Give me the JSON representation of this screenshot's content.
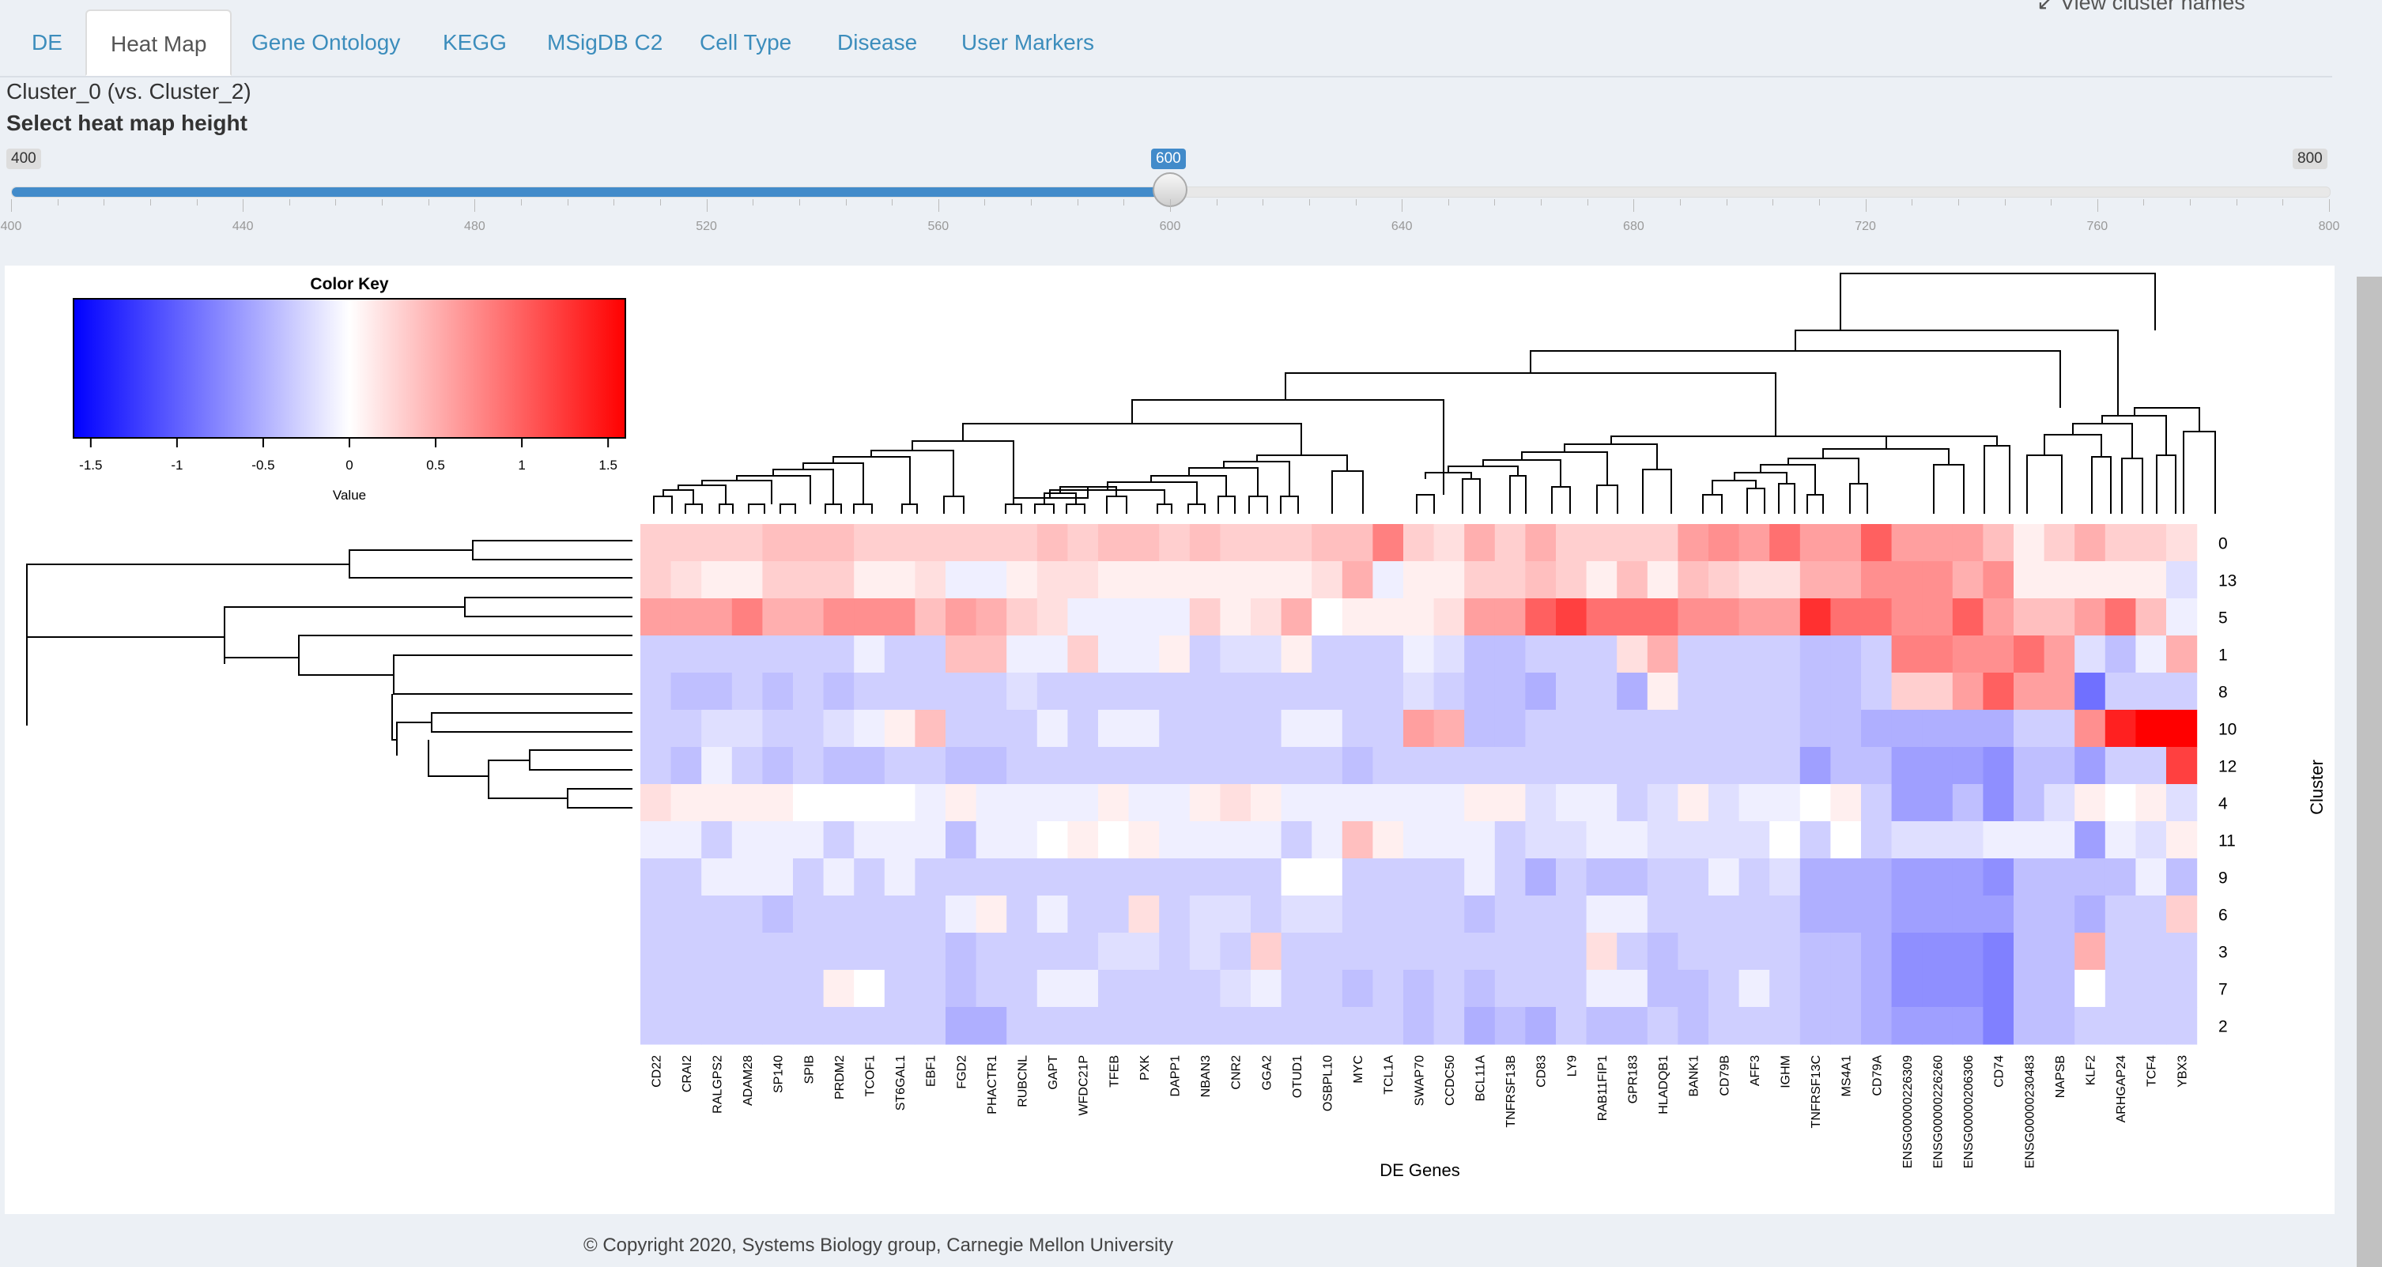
{
  "tabs": [
    {
      "label": "DE",
      "active": false
    },
    {
      "label": "Heat Map",
      "active": true
    },
    {
      "label": "Gene Ontology",
      "active": false
    },
    {
      "label": "KEGG",
      "active": false
    },
    {
      "label": "MSigDB C2",
      "active": false
    },
    {
      "label": "Cell Type",
      "active": false
    },
    {
      "label": "Disease",
      "active": false
    },
    {
      "label": "User Markers",
      "active": false
    }
  ],
  "view_cluster_names": "↙ View cluster names",
  "subtitle": "Cluster_0 (vs. Cluster_2)",
  "heat_map_height_label": "Select heat map height",
  "slider": {
    "min": 400,
    "max": 800,
    "value": 600,
    "min_label": "400",
    "max_label": "800",
    "value_label": "600",
    "ticks": [
      "400",
      "440",
      "480",
      "520",
      "560",
      "600",
      "640",
      "680",
      "720",
      "760",
      "800"
    ]
  },
  "colors": {
    "accent": "#428bca",
    "link": "#3c8dbc",
    "low": "#0000ff",
    "mid": "#ffffff",
    "high": "#ff0000",
    "background": "#ecf0f5"
  },
  "chart_data": {
    "type": "heatmap",
    "color_key_title": "Color Key",
    "color_key_xlabel": "Value",
    "color_key_ticks": [
      "-1.5",
      "-1",
      "-0.5",
      "0",
      "0.5",
      "1",
      "1.5"
    ],
    "color_range": [
      -1.6,
      1.6
    ],
    "xlabel": "DE Genes",
    "ylabel": "Cluster",
    "rows": [
      "0",
      "13",
      "5",
      "1",
      "8",
      "10",
      "12",
      "4",
      "11",
      "9",
      "6",
      "3",
      "7",
      "2"
    ],
    "columns": [
      "CD22",
      "CRAI2",
      "RALGPS2",
      "ADAM28",
      "SP140",
      "SPIB",
      "PRDM2",
      "TCOF1",
      "ST6GAL1",
      "EBF1",
      "FGD2",
      "PHACTR1",
      "RUBCNL",
      "GAPT",
      "WFDC21P",
      "TFEB",
      "PXK",
      "DAPP1",
      "NBAN3",
      "CNR2",
      "GGA2",
      "OTUD1",
      "OSBPL10",
      "MYC",
      "TCL1A",
      "SWAP70",
      "CCDC50",
      "BCL11A",
      "TNFRSF13B",
      "CD83",
      "LY9",
      "RAB11FIP1",
      "GPR183",
      "HLADQB1",
      "BANK1",
      "CD79B",
      "AFF3",
      "IGHM",
      "TNFRSF13C",
      "MS4A1",
      "CD79A",
      "ENSG00000226309",
      "ENSG00000226260",
      "ENSG00000206306",
      "CD74",
      "ENSG00000230483",
      "NAPSB",
      "KLF2",
      "ARHGAP24",
      "TCF4",
      "YBX3"
    ],
    "values": [
      [
        0.3,
        0.3,
        0.3,
        0.3,
        0.4,
        0.4,
        0.4,
        0.3,
        0.3,
        0.3,
        0.3,
        0.3,
        0.3,
        0.4,
        0.3,
        0.4,
        0.4,
        0.3,
        0.4,
        0.3,
        0.3,
        0.3,
        0.4,
        0.4,
        0.8,
        0.3,
        0.2,
        0.5,
        0.3,
        0.5,
        0.3,
        0.3,
        0.3,
        0.3,
        0.6,
        0.7,
        0.6,
        0.9,
        0.6,
        0.6,
        1.0,
        0.6,
        0.6,
        0.6,
        0.4,
        0.1,
        0.3,
        0.5,
        0.3,
        0.3,
        0.2
      ],
      [
        0.3,
        0.2,
        0.1,
        0.1,
        0.3,
        0.3,
        0.3,
        0.1,
        0.1,
        0.2,
        -0.1,
        -0.1,
        0.1,
        0.2,
        0.2,
        0.1,
        0.1,
        0.1,
        0.1,
        0.1,
        0.1,
        0.1,
        0.2,
        0.5,
        -0.1,
        0.1,
        0.1,
        0.3,
        0.3,
        0.4,
        0.3,
        0.1,
        0.4,
        0.1,
        0.4,
        0.3,
        0.2,
        0.2,
        0.5,
        0.5,
        0.7,
        0.7,
        0.7,
        0.5,
        0.7,
        0.1,
        0.1,
        0.1,
        0.1,
        0.1,
        -0.2
      ],
      [
        0.6,
        0.6,
        0.6,
        0.8,
        0.5,
        0.5,
        0.7,
        0.7,
        0.7,
        0.4,
        0.6,
        0.5,
        0.3,
        0.2,
        -0.1,
        -0.1,
        -0.1,
        -0.1,
        0.3,
        0.1,
        0.2,
        0.5,
        0.0,
        0.1,
        0.1,
        0.1,
        0.2,
        0.6,
        0.6,
        1.0,
        1.2,
        0.9,
        0.9,
        0.9,
        0.7,
        0.7,
        0.6,
        0.6,
        1.3,
        0.9,
        0.9,
        0.7,
        0.7,
        1.0,
        0.6,
        0.4,
        0.4,
        0.6,
        0.9,
        0.4,
        -0.1
      ],
      [
        -0.3,
        -0.3,
        -0.3,
        -0.3,
        -0.3,
        -0.3,
        -0.3,
        -0.1,
        -0.3,
        -0.3,
        0.4,
        0.4,
        -0.1,
        -0.1,
        0.3,
        -0.1,
        -0.1,
        0.1,
        -0.3,
        -0.2,
        -0.2,
        0.1,
        -0.3,
        -0.3,
        -0.3,
        -0.1,
        -0.2,
        -0.4,
        -0.4,
        -0.3,
        -0.3,
        -0.3,
        0.2,
        0.5,
        -0.3,
        -0.3,
        -0.3,
        -0.3,
        -0.4,
        -0.4,
        -0.3,
        0.8,
        0.8,
        0.7,
        0.7,
        0.9,
        0.6,
        -0.2,
        -0.4,
        -0.1,
        0.5
      ],
      [
        -0.3,
        -0.4,
        -0.4,
        -0.3,
        -0.4,
        -0.3,
        -0.4,
        -0.3,
        -0.3,
        -0.3,
        -0.3,
        -0.3,
        -0.2,
        -0.3,
        -0.3,
        -0.3,
        -0.3,
        -0.3,
        -0.3,
        -0.3,
        -0.3,
        -0.3,
        -0.3,
        -0.3,
        -0.3,
        -0.2,
        -0.3,
        -0.4,
        -0.4,
        -0.5,
        -0.3,
        -0.3,
        -0.5,
        0.1,
        -0.3,
        -0.3,
        -0.3,
        -0.3,
        -0.4,
        -0.4,
        -0.3,
        0.3,
        0.3,
        0.6,
        1.0,
        0.6,
        0.6,
        -0.9,
        -0.3,
        -0.3,
        -0.3
      ],
      [
        -0.3,
        -0.3,
        -0.2,
        -0.2,
        -0.3,
        -0.3,
        -0.2,
        -0.1,
        0.1,
        0.4,
        -0.3,
        -0.3,
        -0.3,
        -0.1,
        -0.3,
        -0.1,
        -0.1,
        -0.3,
        -0.3,
        -0.3,
        -0.3,
        -0.1,
        -0.1,
        -0.3,
        -0.3,
        0.6,
        0.5,
        -0.4,
        -0.4,
        -0.3,
        -0.3,
        -0.3,
        -0.3,
        -0.3,
        -0.3,
        -0.3,
        -0.3,
        -0.3,
        -0.4,
        -0.4,
        -0.5,
        -0.5,
        -0.5,
        -0.5,
        -0.5,
        -0.3,
        -0.3,
        0.7,
        1.4,
        1.6,
        1.6
      ],
      [
        -0.3,
        -0.4,
        -0.1,
        -0.3,
        -0.4,
        -0.3,
        -0.4,
        -0.4,
        -0.3,
        -0.3,
        -0.4,
        -0.4,
        -0.3,
        -0.3,
        -0.3,
        -0.3,
        -0.3,
        -0.3,
        -0.3,
        -0.3,
        -0.3,
        -0.3,
        -0.3,
        -0.4,
        -0.3,
        -0.3,
        -0.3,
        -0.3,
        -0.3,
        -0.3,
        -0.3,
        -0.3,
        -0.3,
        -0.3,
        -0.3,
        -0.3,
        -0.3,
        -0.3,
        -0.6,
        -0.4,
        -0.4,
        -0.6,
        -0.6,
        -0.6,
        -0.7,
        -0.4,
        -0.4,
        -0.6,
        -0.3,
        -0.3,
        1.2
      ],
      [
        0.2,
        0.1,
        0.1,
        0.1,
        0.1,
        0.0,
        0.0,
        0.0,
        0.0,
        -0.1,
        0.1,
        -0.1,
        -0.1,
        -0.1,
        -0.1,
        0.1,
        -0.1,
        -0.1,
        0.1,
        0.2,
        0.1,
        -0.1,
        -0.1,
        -0.1,
        -0.1,
        -0.1,
        -0.1,
        0.1,
        0.1,
        -0.2,
        -0.1,
        -0.1,
        -0.3,
        -0.2,
        0.1,
        -0.2,
        -0.1,
        -0.1,
        0.0,
        0.1,
        -0.3,
        -0.6,
        -0.6,
        -0.4,
        -0.7,
        -0.4,
        -0.2,
        0.1,
        0.0,
        0.1,
        -0.2
      ],
      [
        -0.1,
        -0.1,
        -0.3,
        -0.1,
        -0.1,
        -0.1,
        -0.3,
        -0.1,
        -0.1,
        -0.1,
        -0.4,
        -0.1,
        -0.1,
        0.0,
        0.1,
        0.0,
        0.1,
        -0.1,
        -0.1,
        -0.1,
        -0.1,
        -0.3,
        -0.1,
        0.4,
        0.1,
        -0.1,
        -0.1,
        -0.1,
        -0.3,
        -0.2,
        -0.2,
        -0.1,
        -0.1,
        -0.2,
        -0.2,
        -0.2,
        -0.2,
        0.0,
        -0.3,
        0.0,
        -0.3,
        -0.2,
        -0.2,
        -0.2,
        -0.1,
        -0.1,
        -0.1,
        -0.6,
        -0.1,
        -0.2,
        0.1
      ],
      [
        -0.3,
        -0.3,
        -0.1,
        -0.1,
        -0.1,
        -0.3,
        -0.1,
        -0.3,
        -0.1,
        -0.3,
        -0.3,
        -0.3,
        -0.3,
        -0.3,
        -0.3,
        -0.3,
        -0.3,
        -0.3,
        -0.3,
        -0.3,
        -0.3,
        0.0,
        0.0,
        -0.3,
        -0.3,
        -0.3,
        -0.3,
        -0.1,
        -0.3,
        -0.5,
        -0.3,
        -0.4,
        -0.4,
        -0.3,
        -0.3,
        -0.1,
        -0.3,
        -0.2,
        -0.5,
        -0.5,
        -0.5,
        -0.6,
        -0.6,
        -0.6,
        -0.7,
        -0.4,
        -0.4,
        -0.4,
        -0.4,
        -0.1,
        -0.4
      ],
      [
        -0.3,
        -0.3,
        -0.3,
        -0.3,
        -0.4,
        -0.3,
        -0.3,
        -0.3,
        -0.3,
        -0.3,
        -0.1,
        0.1,
        -0.3,
        -0.1,
        -0.3,
        -0.3,
        0.2,
        -0.3,
        -0.2,
        -0.2,
        -0.3,
        -0.2,
        -0.2,
        -0.3,
        -0.3,
        -0.3,
        -0.3,
        -0.4,
        -0.3,
        -0.3,
        -0.3,
        -0.1,
        -0.1,
        -0.3,
        -0.3,
        -0.3,
        -0.3,
        -0.3,
        -0.5,
        -0.5,
        -0.5,
        -0.6,
        -0.6,
        -0.6,
        -0.6,
        -0.4,
        -0.4,
        -0.5,
        -0.3,
        -0.3,
        0.3
      ],
      [
        -0.3,
        -0.3,
        -0.3,
        -0.3,
        -0.3,
        -0.3,
        -0.3,
        -0.3,
        -0.3,
        -0.3,
        -0.4,
        -0.3,
        -0.3,
        -0.3,
        -0.3,
        -0.2,
        -0.2,
        -0.3,
        -0.2,
        -0.3,
        0.3,
        -0.3,
        -0.3,
        -0.3,
        -0.3,
        -0.3,
        -0.3,
        -0.3,
        -0.3,
        -0.3,
        -0.3,
        0.2,
        -0.3,
        -0.4,
        -0.3,
        -0.3,
        -0.3,
        -0.3,
        -0.4,
        -0.4,
        -0.5,
        -0.7,
        -0.7,
        -0.7,
        -0.8,
        -0.4,
        -0.4,
        0.5,
        -0.3,
        -0.3,
        -0.3
      ],
      [
        -0.3,
        -0.3,
        -0.3,
        -0.3,
        -0.3,
        -0.3,
        0.1,
        0.0,
        -0.3,
        -0.3,
        -0.4,
        -0.3,
        -0.3,
        -0.1,
        -0.1,
        -0.3,
        -0.3,
        -0.3,
        -0.3,
        -0.2,
        -0.1,
        -0.3,
        -0.3,
        -0.4,
        -0.3,
        -0.4,
        -0.3,
        -0.4,
        -0.3,
        -0.3,
        -0.3,
        -0.1,
        -0.1,
        -0.4,
        -0.4,
        -0.3,
        -0.1,
        -0.3,
        -0.4,
        -0.4,
        -0.5,
        -0.7,
        -0.7,
        -0.7,
        -0.8,
        -0.4,
        -0.4,
        0.0,
        -0.3,
        -0.3,
        -0.3
      ],
      [
        -0.3,
        -0.3,
        -0.3,
        -0.3,
        -0.3,
        -0.3,
        -0.3,
        -0.3,
        -0.3,
        -0.3,
        -0.5,
        -0.5,
        -0.3,
        -0.3,
        -0.3,
        -0.3,
        -0.3,
        -0.3,
        -0.3,
        -0.3,
        -0.3,
        -0.3,
        -0.3,
        -0.3,
        -0.3,
        -0.4,
        -0.3,
        -0.5,
        -0.4,
        -0.5,
        -0.3,
        -0.4,
        -0.4,
        -0.3,
        -0.4,
        -0.3,
        -0.3,
        -0.3,
        -0.4,
        -0.4,
        -0.5,
        -0.6,
        -0.6,
        -0.6,
        -0.8,
        -0.4,
        -0.4,
        -0.3,
        -0.3,
        -0.3,
        -0.3
      ]
    ]
  },
  "footer": "© Copyright 2020, Systems Biology group, Carnegie Mellon University"
}
